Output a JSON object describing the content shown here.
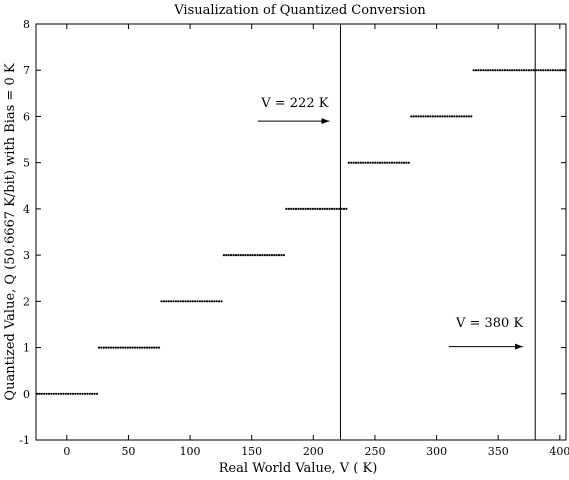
{
  "chart_data": {
    "type": "scatter",
    "title": "Visualization of Quantized Conversion",
    "xlabel": "Real World Value, V ( K)",
    "ylabel": "Quantized Value, Q (50.6667 K/bit) with Bias = 0 K",
    "xlim": [
      -25,
      405
    ],
    "ylim": [
      -1,
      8
    ],
    "x_ticks": [
      0,
      50,
      100,
      150,
      200,
      250,
      300,
      350,
      400
    ],
    "y_ticks": [
      -1,
      0,
      1,
      2,
      3,
      4,
      5,
      6,
      7,
      8
    ],
    "grid": false,
    "quantization_step": 50.6667,
    "series": [
      {
        "levels": [
          {
            "q": 0,
            "x_start": -25,
            "x_end": 25.33
          },
          {
            "q": 1,
            "x_start": 25.33,
            "x_end": 76.0
          },
          {
            "q": 2,
            "x_start": 76.0,
            "x_end": 126.67
          },
          {
            "q": 3,
            "x_start": 126.67,
            "x_end": 177.33
          },
          {
            "q": 4,
            "x_start": 177.33,
            "x_end": 228.0
          },
          {
            "q": 5,
            "x_start": 228.0,
            "x_end": 278.67
          },
          {
            "q": 6,
            "x_start": 278.67,
            "x_end": 329.33
          },
          {
            "q": 7,
            "x_start": 329.33,
            "x_end": 405
          }
        ]
      }
    ],
    "vertical_lines": [
      222,
      380
    ],
    "annotations": [
      {
        "text": "V = 222 K",
        "label_x": 185,
        "label_y": 6.2,
        "arrow_from_x": 155,
        "arrow_to_x": 213,
        "arrow_y": 5.9
      },
      {
        "text": "V = 380 K",
        "label_x": 343,
        "label_y": 1.45,
        "arrow_from_x": 310,
        "arrow_to_x": 370,
        "arrow_y": 1.02
      }
    ]
  }
}
